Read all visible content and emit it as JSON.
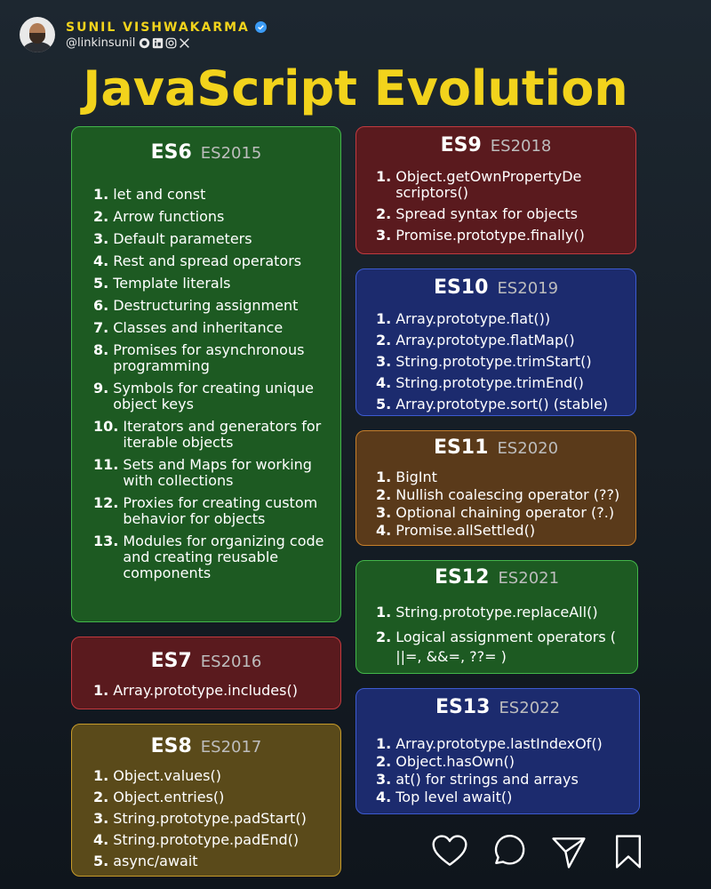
{
  "author": {
    "name": "SUNIL VISHWAKARMA",
    "handle": "@linkinsunil",
    "social_icons": [
      "github-icon",
      "linkedin-icon",
      "instagram-icon",
      "x-icon"
    ]
  },
  "title": "JavaScript Evolution",
  "cards": {
    "es6": {
      "version": "ES6",
      "year": "ES2015",
      "items": [
        {
          "n": "1.",
          "t": "let and const"
        },
        {
          "n": "2.",
          "t": "Arrow functions"
        },
        {
          "n": "3.",
          "t": "Default  parameters"
        },
        {
          "n": "4.",
          "t": "Rest and spread operators"
        },
        {
          "n": "5.",
          "t": "Template literals"
        },
        {
          "n": "6.",
          "t": "Destructuring assignment"
        },
        {
          "n": "7.",
          "t": "Classes and inheritance"
        },
        {
          "n": "8.",
          "t": "Promises for asynchronous programming"
        },
        {
          "n": "9.",
          "t": "Symbols for creating unique object keys"
        },
        {
          "n": "10.",
          "t": "Iterators and generators for iterable objects"
        },
        {
          "n": "11.",
          "t": "Sets and Maps for working with collections"
        },
        {
          "n": "12.",
          "t": "Proxies for creating custom behavior for objects"
        },
        {
          "n": "13.",
          "t": "Modules for organizing code and creating reusable components"
        }
      ]
    },
    "es7": {
      "version": "ES7",
      "year": "ES2016",
      "items": [
        {
          "n": "1.",
          "t": "Array.prototype.includes()"
        }
      ]
    },
    "es8": {
      "version": "ES8",
      "year": "ES2017",
      "items": [
        {
          "n": "1.",
          "t": "Object.values()"
        },
        {
          "n": "2.",
          "t": "Object.entries()"
        },
        {
          "n": "3.",
          "t": "String.prototype.padStart()"
        },
        {
          "n": "4.",
          "t": "String.prototype.padEnd()"
        },
        {
          "n": "5.",
          "t": "async/await"
        }
      ]
    },
    "es9": {
      "version": "ES9",
      "year": "ES2018",
      "items": [
        {
          "n": "1.",
          "t": "Object.getOwnPropertyDe scriptors()"
        },
        {
          "n": "2.",
          "t": "Spread syntax for objects"
        },
        {
          "n": "3.",
          "t": "Promise.prototype.finally()"
        }
      ]
    },
    "es10": {
      "version": "ES10",
      "year": "ES2019",
      "items": [
        {
          "n": "1.",
          "t": "Array.prototype.flat())"
        },
        {
          "n": "2.",
          "t": "Array.prototype.flatMap()"
        },
        {
          "n": "3.",
          "t": "String.prototype.trimStart()"
        },
        {
          "n": "4.",
          "t": "String.prototype.trimEnd()"
        },
        {
          "n": "5.",
          "t": "Array.prototype.sort() (stable)"
        }
      ]
    },
    "es11": {
      "version": "ES11",
      "year": "ES2020",
      "items": [
        {
          "n": "1.",
          "t": "BigInt"
        },
        {
          "n": "2.",
          "t": "Nullish coalescing operator (??)"
        },
        {
          "n": "3.",
          "t": "Optional chaining operator (?.)"
        },
        {
          "n": "4.",
          "t": "Promise.allSettled()"
        }
      ]
    },
    "es12": {
      "version": "ES12",
      "year": "ES2021",
      "items": [
        {
          "n": "1.",
          "t": "String.prototype.replaceAll()"
        },
        {
          "n": "2.",
          "t": "Logical assignment operators ( ||=, &&=, ??= )"
        }
      ]
    },
    "es13": {
      "version": "ES13",
      "year": "ES2022",
      "items": [
        {
          "n": "1.",
          "t": "Array.prototype.lastIndexOf()"
        },
        {
          "n": "2.",
          "t": "Object.hasOwn()"
        },
        {
          "n": "3.",
          "t": "at() for strings and arrays"
        },
        {
          "n": "4.",
          "t": "Top level await()"
        }
      ]
    }
  },
  "actions": [
    "heart-icon",
    "comment-icon",
    "share-icon",
    "bookmark-icon"
  ]
}
